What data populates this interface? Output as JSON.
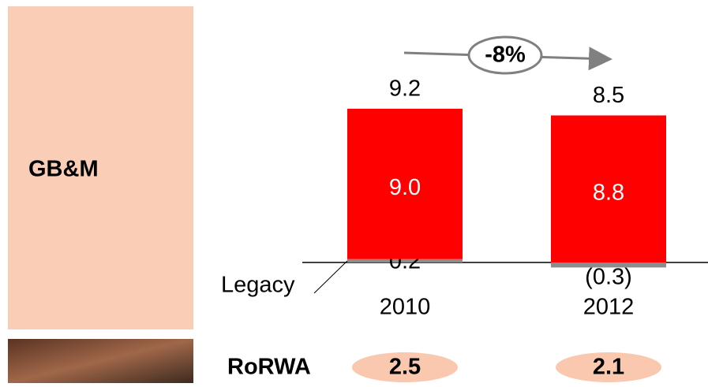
{
  "chart_data": {
    "type": "bar",
    "panel_label": "GB&M",
    "change_label": "-8%",
    "categories": [
      "2010",
      "2012"
    ],
    "series": [
      {
        "name": "Legacy",
        "color": "#8c8c8c",
        "values": [
          0.2,
          -0.3
        ],
        "value_labels": [
          "0.2",
          "(0.3)"
        ]
      },
      {
        "color": "#ff0000",
        "values": [
          9.0,
          8.8
        ],
        "value_labels": [
          "9.0",
          "8.8"
        ]
      }
    ],
    "totals": [
      9.2,
      8.5
    ],
    "rorwa": {
      "label": "RoRWA",
      "values": [
        2.5,
        2.1
      ],
      "color": "#f9c8ae"
    }
  }
}
